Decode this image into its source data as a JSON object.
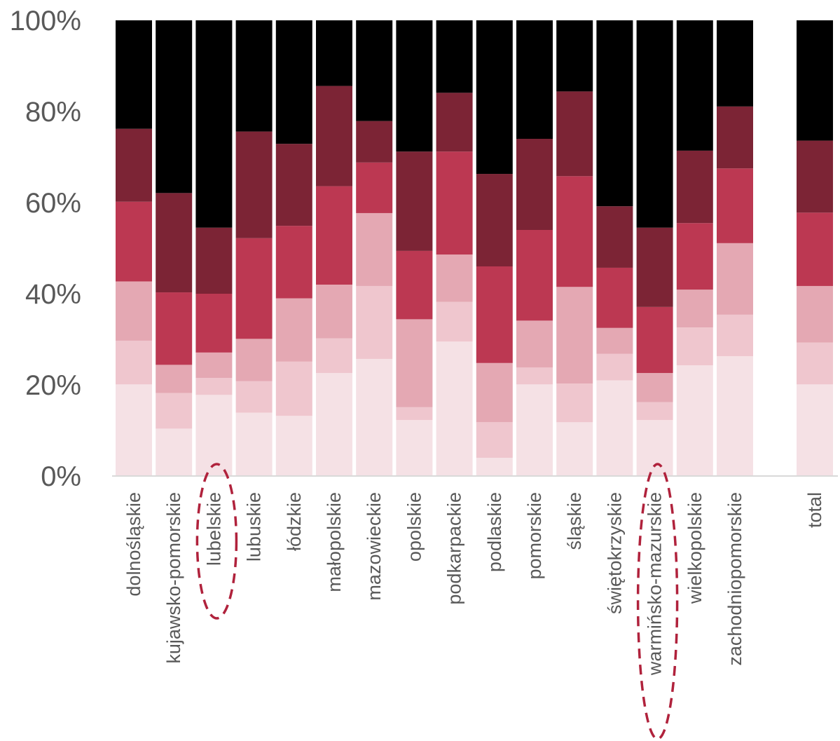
{
  "chart_data": {
    "type": "bar",
    "stacked": true,
    "normalized": true,
    "categories": [
      "dolnośląskie",
      "kujawsko-pomorskie",
      "lubelskie",
      "lubuskie",
      "łódzkie",
      "małopolskie",
      "mazowieckie",
      "opolskie",
      "podkarpackie",
      "podlaskie",
      "pomorskie",
      "śląskie",
      "świętokrzyskie",
      "warmińsko-mazurskie",
      "wielkopolskie",
      "zachodniopomorskie",
      "total"
    ],
    "series": [
      {
        "color": "#f5e1e5",
        "values": [
          20.1,
          10.4,
          17.8,
          13.9,
          13.2,
          22.6,
          25.7,
          12.3,
          29.5,
          4.0,
          20.1,
          11.8,
          21.0,
          12.3,
          24.3,
          26.3,
          20.1
        ]
      },
      {
        "color": "#efc6ce",
        "values": [
          9.6,
          7.8,
          3.7,
          6.9,
          11.9,
          7.6,
          16.0,
          2.8,
          8.7,
          7.8,
          3.7,
          8.5,
          5.8,
          3.9,
          8.3,
          9.1,
          9.2
        ]
      },
      {
        "color": "#e4a8b3",
        "values": [
          13.0,
          6.2,
          5.6,
          9.3,
          13.9,
          11.8,
          16.0,
          19.3,
          10.4,
          13.0,
          10.3,
          21.2,
          5.7,
          6.4,
          8.3,
          15.7,
          12.4
        ]
      },
      {
        "color": "#bc3852",
        "values": [
          17.5,
          15.9,
          12.9,
          22.1,
          15.9,
          21.6,
          11.1,
          15.0,
          22.6,
          21.2,
          19.9,
          24.3,
          13.2,
          14.5,
          14.6,
          16.4,
          16.1
        ]
      },
      {
        "color": "#7c2435",
        "values": [
          16.0,
          21.8,
          14.5,
          23.4,
          18.0,
          22.0,
          9.1,
          21.8,
          12.9,
          20.3,
          20.0,
          18.6,
          13.5,
          17.4,
          15.9,
          13.6,
          15.8
        ]
      },
      {
        "color": "#000000",
        "values": [
          23.8,
          37.9,
          45.5,
          24.4,
          27.1,
          14.4,
          22.1,
          28.8,
          15.9,
          33.7,
          26.0,
          15.6,
          40.8,
          45.5,
          28.6,
          18.9,
          26.4
        ]
      }
    ],
    "ylim": [
      0,
      100
    ],
    "yticks": [
      "0%",
      "20%",
      "40%",
      "60%",
      "80%",
      "100%"
    ],
    "highlighted": [
      "lubelskie",
      "warmińsko-mazurskie"
    ],
    "highlight_color": "#b0223c"
  }
}
